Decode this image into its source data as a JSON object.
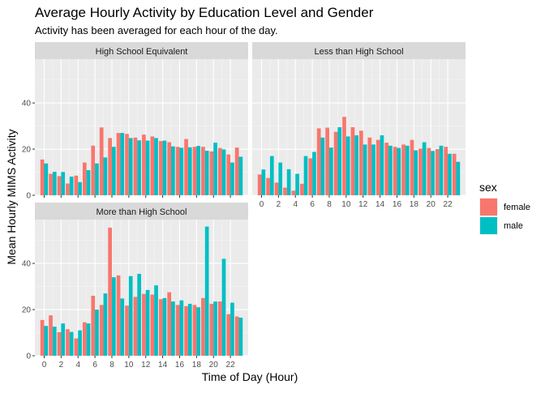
{
  "chart_data": {
    "type": "bar",
    "title": "Average Hourly Activity by Education Level and Gender",
    "subtitle": "Activity has been averaged for each hour of the day.",
    "xlabel": "Time of Day (Hour)",
    "ylabel": "Mean Hourly MIMS Activity",
    "x_ticks": [
      0,
      2,
      4,
      6,
      8,
      10,
      12,
      14,
      16,
      18,
      20,
      22
    ],
    "y_ticks": [
      0,
      20,
      40
    ],
    "ylim": [
      0,
      59
    ],
    "grid": true,
    "legend": {
      "title": "sex",
      "position": "right",
      "entries": [
        {
          "name": "female",
          "color": "#F8766D"
        },
        {
          "name": "male",
          "color": "#00BFC4"
        }
      ]
    },
    "x": [
      0,
      1,
      2,
      3,
      4,
      5,
      6,
      7,
      8,
      9,
      10,
      11,
      12,
      13,
      14,
      15,
      16,
      17,
      18,
      19,
      20,
      21,
      22,
      23
    ],
    "panels": [
      {
        "label": "High School Equivalent",
        "series": [
          {
            "name": "female",
            "values": [
              15.5,
              9.3,
              8.3,
              5.1,
              8.5,
              14.2,
              21.5,
              29.4,
              24.8,
              27.0,
              26.6,
              25.0,
              26.3,
              25.5,
              23.5,
              23.0,
              21.0,
              24.4,
              21.0,
              21.0,
              19.0,
              20.5,
              17.7,
              20.7
            ]
          },
          {
            "name": "male",
            "values": [
              13.8,
              10.2,
              10.1,
              8.1,
              5.7,
              10.9,
              13.8,
              16.4,
              21.0,
              27.0,
              24.8,
              23.8,
              23.7,
              24.8,
              23.7,
              21.2,
              20.6,
              20.8,
              21.4,
              19.3,
              22.8,
              19.9,
              14.2,
              16.7
            ]
          }
        ]
      },
      {
        "label": "Less than High School",
        "series": [
          {
            "name": "female",
            "values": [
              9.0,
              7.5,
              5.5,
              3.3,
              2.0,
              5.0,
              16.0,
              29.0,
              29.3,
              27.5,
              34.0,
              29.5,
              28.0,
              25.0,
              24.0,
              22.8,
              21.0,
              22.0,
              24.0,
              20.2,
              20.5,
              20.0,
              21.0,
              18.0
            ]
          },
          {
            "name": "male",
            "values": [
              11.2,
              17.0,
              14.2,
              11.3,
              9.3,
              17.0,
              18.8,
              25.0,
              20.7,
              29.5,
              25.5,
              26.0,
              22.0,
              22.0,
              26.0,
              21.5,
              20.5,
              21.5,
              19.5,
              23.0,
              19.2,
              21.5,
              18.0,
              14.5
            ]
          }
        ]
      },
      {
        "label": "More than High School",
        "series": [
          {
            "name": "female",
            "values": [
              15.5,
              17.5,
              10.2,
              11.5,
              7.5,
              14.5,
              26.0,
              22.0,
              55.5,
              34.8,
              21.7,
              25.5,
              26.8,
              26.5,
              24.5,
              27.5,
              22.0,
              21.5,
              22.0,
              25.0,
              22.5,
              23.5,
              18.0,
              17.0
            ]
          },
          {
            "name": "male",
            "values": [
              12.9,
              12.6,
              14.0,
              10.3,
              11.0,
              14.0,
              20.0,
              27.0,
              34.0,
              24.8,
              34.5,
              35.5,
              28.5,
              30.5,
              25.0,
              23.5,
              24.0,
              22.5,
              21.0,
              56.0,
              23.5,
              42.0,
              23.0,
              16.5
            ]
          }
        ]
      }
    ]
  }
}
